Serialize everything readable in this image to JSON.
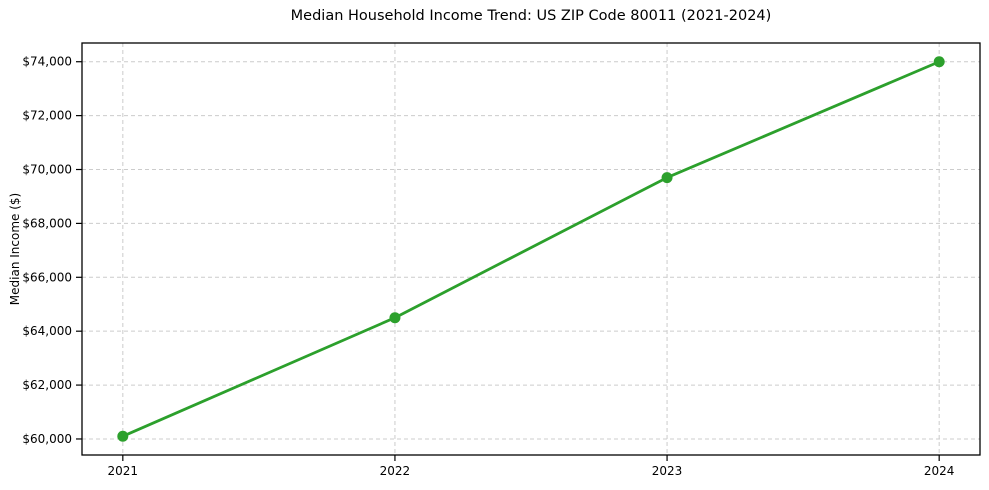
{
  "chart_data": {
    "type": "line",
    "title": "Median Household Income Trend: US ZIP Code 80011 (2021-2024)",
    "xlabel": "",
    "ylabel": "Median Income ($)",
    "x": [
      2021,
      2022,
      2023,
      2024
    ],
    "series": [
      {
        "values": [
          60100,
          64500,
          69700,
          74000
        ],
        "color": "#2ca02c",
        "marker": "circle",
        "line_width": 2.8,
        "marker_radius": 5.5
      }
    ],
    "xlim": [
      2020.85,
      2024.15
    ],
    "ylim": [
      59405,
      74695
    ],
    "x_ticks": [
      {
        "value": 2021,
        "label": "2021"
      },
      {
        "value": 2022,
        "label": "2022"
      },
      {
        "value": 2023,
        "label": "2023"
      },
      {
        "value": 2024,
        "label": "2024"
      }
    ],
    "y_ticks": [
      {
        "value": 60000,
        "label": "$60,000"
      },
      {
        "value": 62000,
        "label": "$62,000"
      },
      {
        "value": 64000,
        "label": "$64,000"
      },
      {
        "value": 66000,
        "label": "$66,000"
      },
      {
        "value": 68000,
        "label": "$68,000"
      },
      {
        "value": 70000,
        "label": "$70,000"
      },
      {
        "value": 72000,
        "label": "$72,000"
      },
      {
        "value": 74000,
        "label": "$74,000"
      }
    ],
    "grid": {
      "show": true,
      "style": "dashed",
      "color": "#cccccc"
    },
    "legend": {
      "show": false
    },
    "colors": {
      "background": "#ffffff",
      "axis": "#000000",
      "tick_label": "#000000",
      "line": "#2ca02c"
    }
  }
}
